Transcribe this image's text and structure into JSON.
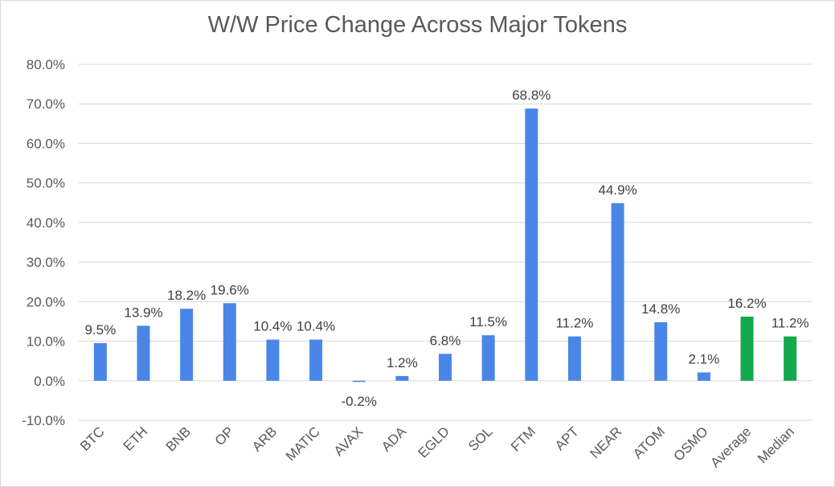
{
  "chart_data": {
    "type": "bar",
    "title": "W/W Price Change Across Major Tokens",
    "xlabel": "",
    "ylabel": "",
    "ylim": [
      -10,
      80
    ],
    "ytick_values": [
      -10,
      0,
      10,
      20,
      30,
      40,
      50,
      60,
      70,
      80
    ],
    "ytick_labels": [
      "-10.0%",
      "0.0%",
      "10.0%",
      "20.0%",
      "30.0%",
      "40.0%",
      "50.0%",
      "60.0%",
      "70.0%",
      "80.0%"
    ],
    "grid": true,
    "legend": "none",
    "categories": [
      "BTC",
      "ETH",
      "BNB",
      "OP",
      "ARB",
      "MATIC",
      "AVAX",
      "ADA",
      "EGLD",
      "SOL",
      "FTM",
      "APT",
      "NEAR",
      "ATOM",
      "OSMO",
      "Average",
      "Median"
    ],
    "values": [
      9.5,
      13.9,
      18.2,
      19.6,
      10.4,
      10.4,
      -0.2,
      1.2,
      6.8,
      11.5,
      68.8,
      11.2,
      44.9,
      14.8,
      2.1,
      16.2,
      11.2
    ],
    "data_labels": [
      "9.5%",
      "13.9%",
      "18.2%",
      "19.6%",
      "10.4%",
      "10.4%",
      "-0.2%",
      "1.2%",
      "6.8%",
      "11.5%",
      "68.8%",
      "11.2%",
      "44.9%",
      "14.8%",
      "2.1%",
      "16.2%",
      "11.2%"
    ],
    "bar_colors": [
      "#4a86e8",
      "#4a86e8",
      "#4a86e8",
      "#4a86e8",
      "#4a86e8",
      "#4a86e8",
      "#4a86e8",
      "#4a86e8",
      "#4a86e8",
      "#4a86e8",
      "#4a86e8",
      "#4a86e8",
      "#4a86e8",
      "#4a86e8",
      "#4a86e8",
      "#12a94e",
      "#12a94e"
    ],
    "gridline_color": "#d9d9d9"
  }
}
